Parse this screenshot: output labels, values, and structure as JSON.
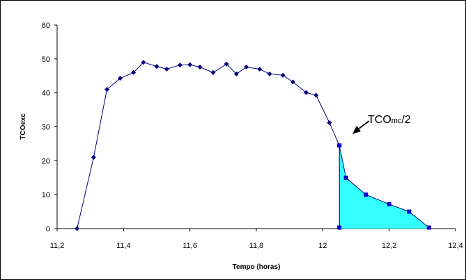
{
  "chart_data": {
    "type": "line",
    "title": "",
    "xlabel": "Tempo (horas)",
    "ylabel": "TCOexc",
    "xlim": [
      11.2,
      12.4
    ],
    "ylim": [
      0,
      60
    ],
    "x_ticks": [
      "11,2",
      "11,4",
      "11,6",
      "11,8",
      "12",
      "12,2",
      "12,4"
    ],
    "y_ticks": [
      "0",
      "10",
      "20",
      "30",
      "40",
      "50",
      "60"
    ],
    "grid": false,
    "legend": "none",
    "series": [
      {
        "marker": "diamond",
        "color": "#000080",
        "points": [
          [
            11.26,
            0
          ],
          [
            11.31,
            21
          ],
          [
            11.35,
            41
          ],
          [
            11.39,
            44.3
          ],
          [
            11.43,
            46
          ],
          [
            11.46,
            49
          ],
          [
            11.5,
            47.8
          ],
          [
            11.53,
            47
          ],
          [
            11.57,
            48.2
          ],
          [
            11.6,
            48.3
          ],
          [
            11.63,
            47.6
          ],
          [
            11.67,
            46
          ],
          [
            11.71,
            48.5
          ],
          [
            11.74,
            45.6
          ],
          [
            11.77,
            47.6
          ],
          [
            11.81,
            47
          ],
          [
            11.84,
            45.6
          ],
          [
            11.88,
            45.2
          ],
          [
            11.91,
            43.2
          ],
          [
            11.95,
            40.1
          ],
          [
            11.98,
            39.3
          ],
          [
            12.02,
            31.2
          ],
          [
            12.05,
            24.5
          ]
        ]
      },
      {
        "marker": "square",
        "color": "#000080",
        "fill": "#33FFFF",
        "points": [
          [
            12.05,
            0.3
          ],
          [
            12.05,
            24.5
          ],
          [
            12.07,
            15
          ],
          [
            12.13,
            10
          ],
          [
            12.2,
            7.2
          ],
          [
            12.26,
            5
          ],
          [
            12.32,
            0.3
          ]
        ]
      }
    ],
    "annotation": {
      "label_main": "TCO",
      "label_sub": "mc",
      "label_tail": "/2"
    }
  }
}
